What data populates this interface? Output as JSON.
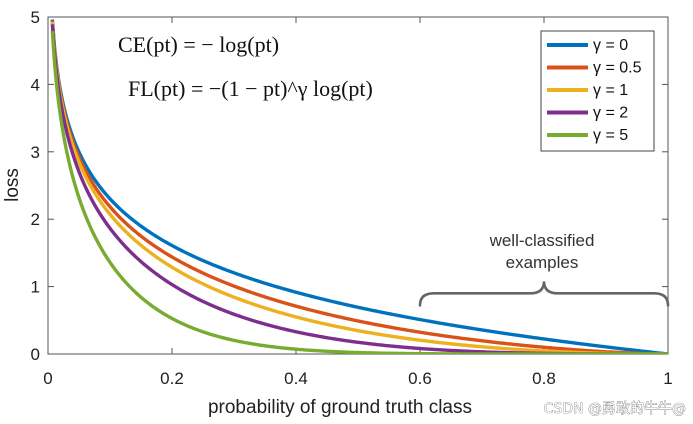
{
  "chart_data": {
    "type": "line",
    "xlabel": "probability of ground truth class",
    "ylabel": "loss",
    "xlim": [
      0,
      1
    ],
    "ylim": [
      0,
      5
    ],
    "x_ticks": [
      0,
      0.2,
      0.4,
      0.6,
      0.8,
      1
    ],
    "x_tick_labels": [
      "0",
      "0.2",
      "0.4",
      "0.6",
      "0.8",
      "1"
    ],
    "y_ticks": [
      0,
      1,
      2,
      3,
      4,
      5
    ],
    "y_tick_labels": [
      "0",
      "1",
      "2",
      "3",
      "4",
      "5"
    ],
    "x": [
      0.007,
      0.01,
      0.02,
      0.03,
      0.05,
      0.07,
      0.1,
      0.15,
      0.2,
      0.3,
      0.4,
      0.5,
      0.6,
      0.7,
      0.8,
      0.9,
      1.0
    ],
    "series": [
      {
        "name": "γ = 0",
        "gamma": 0,
        "color": "#0072BD",
        "values": [
          4.962,
          4.605,
          3.912,
          3.507,
          2.996,
          2.659,
          2.303,
          1.897,
          1.609,
          1.204,
          0.916,
          0.693,
          0.511,
          0.357,
          0.223,
          0.105,
          0.0
        ]
      },
      {
        "name": "γ = 0.5",
        "gamma": 0.5,
        "color": "#D95319",
        "values": [
          4.945,
          4.582,
          3.873,
          3.454,
          2.92,
          2.571,
          2.185,
          1.749,
          1.439,
          1.007,
          0.709,
          0.49,
          0.323,
          0.196,
          0.1,
          0.033,
          0.0
        ]
      },
      {
        "name": "γ = 1",
        "gamma": 1,
        "color": "#EDB120",
        "values": [
          4.927,
          4.559,
          3.834,
          3.402,
          2.846,
          2.473,
          2.073,
          1.612,
          1.288,
          0.843,
          0.55,
          0.347,
          0.204,
          0.107,
          0.045,
          0.011,
          0.0
        ]
      },
      {
        "name": "γ = 2",
        "gamma": 2,
        "color": "#7E2F8E",
        "values": [
          4.893,
          4.513,
          3.757,
          3.3,
          2.704,
          2.312,
          1.865,
          1.371,
          1.03,
          0.59,
          0.33,
          0.173,
          0.082,
          0.032,
          0.009,
          0.001,
          0.0
        ]
      },
      {
        "name": "γ = 5",
        "gamma": 5,
        "color": "#77AC30",
        "values": [
          4.79,
          4.379,
          3.536,
          3.011,
          2.318,
          1.825,
          1.361,
          0.842,
          0.527,
          0.203,
          0.071,
          0.022,
          0.005,
          0.001,
          0.0,
          0.0,
          0.0
        ]
      }
    ],
    "legend_position": "top-right",
    "formulas": [
      "CE(pt) = − log(pt)",
      "FL(pt) = −(1 − pt)^γ log(pt)"
    ],
    "annotation": {
      "line1": "well-classified",
      "line2": "examples",
      "x_from": 0.6,
      "x_to": 1.0,
      "brace_y": 0.9
    }
  },
  "watermark": "CSDN @勇敢的牛牛@"
}
